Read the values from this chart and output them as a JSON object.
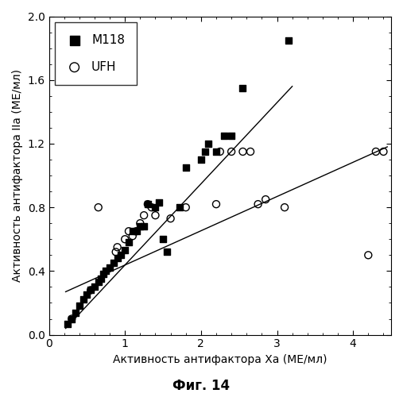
{
  "title": "",
  "xlabel": "Активность антифактора Ха (МЕ/мл)",
  "ylabel": "Активность антифактора IIa (МЕ/мл)",
  "caption": "Фиг. 14",
  "xlim": [
    0,
    4.5
  ],
  "ylim": [
    0,
    2.0
  ],
  "xticks": [
    0,
    1,
    2,
    3,
    4
  ],
  "yticks": [
    0,
    0.4,
    0.8,
    1.2,
    1.6,
    2.0
  ],
  "m118_x": [
    0.25,
    0.3,
    0.35,
    0.4,
    0.45,
    0.5,
    0.55,
    0.6,
    0.65,
    0.68,
    0.72,
    0.75,
    0.8,
    0.85,
    0.9,
    0.95,
    1.0,
    1.05,
    1.1,
    1.15,
    1.2,
    1.25,
    1.3,
    1.4,
    1.45,
    1.5,
    1.55,
    1.72,
    1.8,
    2.0,
    2.05,
    2.1,
    2.2,
    2.3,
    2.4,
    2.55,
    3.15
  ],
  "m118_y": [
    0.07,
    0.1,
    0.14,
    0.18,
    0.22,
    0.25,
    0.28,
    0.3,
    0.33,
    0.35,
    0.38,
    0.4,
    0.42,
    0.45,
    0.48,
    0.5,
    0.53,
    0.58,
    0.65,
    0.65,
    0.68,
    0.68,
    0.82,
    0.8,
    0.83,
    0.6,
    0.52,
    0.8,
    1.05,
    1.1,
    1.15,
    1.2,
    1.15,
    1.25,
    1.25,
    1.55,
    1.85
  ],
  "ufh_x": [
    0.3,
    0.55,
    0.65,
    0.88,
    0.9,
    1.0,
    1.05,
    1.1,
    1.15,
    1.2,
    1.25,
    1.3,
    1.35,
    1.4,
    1.6,
    1.8,
    2.2,
    2.25,
    2.4,
    2.55,
    2.65,
    2.75,
    2.85,
    3.1,
    4.2,
    4.3,
    4.4
  ],
  "ufh_y": [
    0.1,
    0.28,
    0.8,
    0.52,
    0.55,
    0.6,
    0.65,
    0.62,
    0.65,
    0.7,
    0.75,
    0.82,
    0.8,
    0.75,
    0.73,
    0.8,
    0.82,
    1.15,
    1.15,
    1.15,
    1.15,
    0.82,
    0.85,
    0.8,
    0.5,
    1.15,
    1.15
  ],
  "m118_line_x": [
    0.22,
    3.2
  ],
  "m118_line_y": [
    0.04,
    1.56
  ],
  "ufh_line_x": [
    0.22,
    4.45
  ],
  "ufh_line_y": [
    0.27,
    1.18
  ],
  "marker_size_m118": 38,
  "marker_size_ufh": 42,
  "legend_loc": "upper left",
  "figsize": [
    5.07,
    5.0
  ],
  "dpi": 100
}
